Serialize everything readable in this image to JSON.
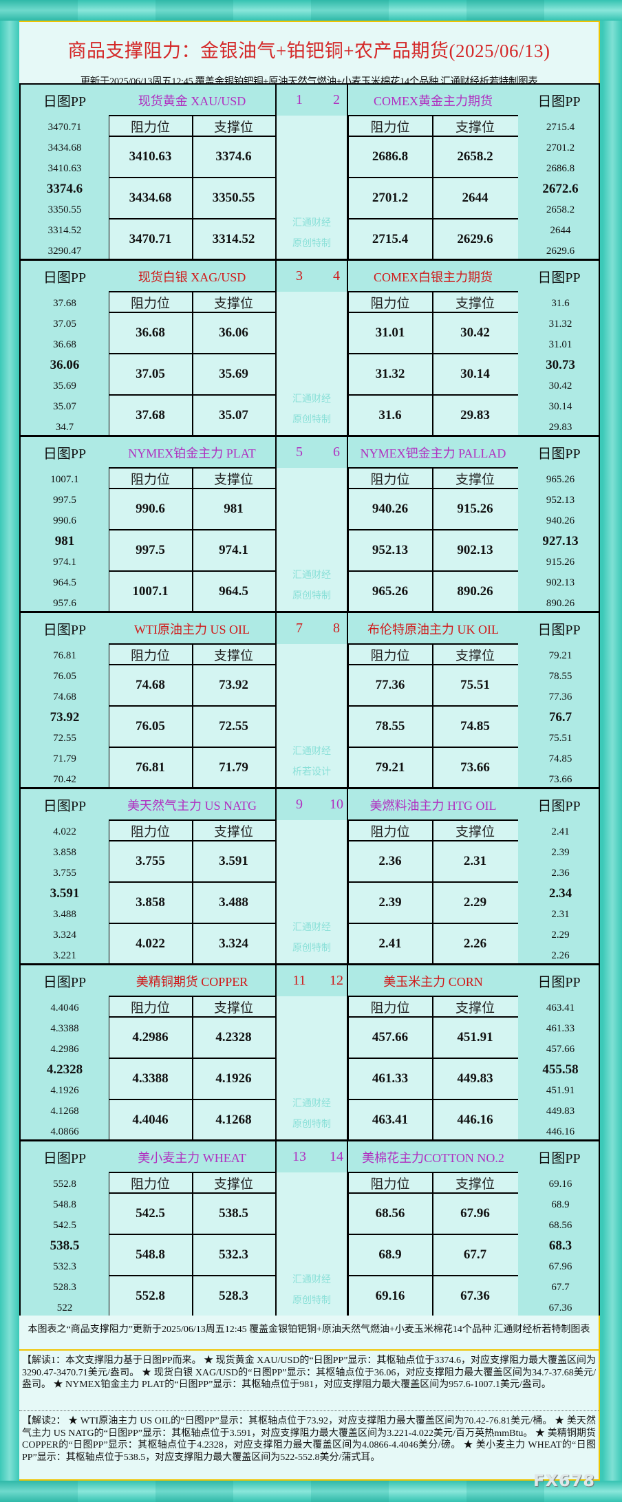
{
  "header": {
    "title": "商品支撑阻力：金银油气+铂钯铜+农产品期货(2025/06/13)",
    "subtitle": "更新于2025/06/13周五12:45  覆盖金银铂钯铜+原油天然气燃油+小麦玉米棉花14个品种  汇通财经析若特制图表"
  },
  "labels": {
    "pp": "日图PP",
    "resist": "阻力位",
    "support": "支撑位"
  },
  "colors": {
    "purple": "#b030c0",
    "red": "#d01818",
    "bg": "#aeeae4",
    "cell": "#d4f5f2",
    "accent": "#f0c400"
  },
  "sections": [
    {
      "nums": [
        "1",
        "2"
      ],
      "color": "#b030c0",
      "watermark": [
        "汇通财经",
        "原创特制"
      ],
      "left": {
        "name": "现货黄金 XAU/USD",
        "pp": [
          "3470.71",
          "3434.68",
          "3410.63",
          "3374.6",
          "3350.55",
          "3314.52",
          "3290.47"
        ],
        "resist": [
          "3410.63",
          "3434.68",
          "3470.71"
        ],
        "support": [
          "3374.6",
          "3350.55",
          "3314.52"
        ]
      },
      "right": {
        "name": "COMEX黄金主力期货",
        "pp": [
          "2715.4",
          "2701.2",
          "2686.8",
          "2672.6",
          "2658.2",
          "2644",
          "2629.6"
        ],
        "resist": [
          "2686.8",
          "2701.2",
          "2715.4"
        ],
        "support": [
          "2658.2",
          "2644",
          "2629.6"
        ]
      }
    },
    {
      "nums": [
        "3",
        "4"
      ],
      "color": "#d01818",
      "watermark": [
        "汇通财经",
        "原创特制"
      ],
      "left": {
        "name": "现货白银 XAG/USD",
        "pp": [
          "37.68",
          "37.05",
          "36.68",
          "36.06",
          "35.69",
          "35.07",
          "34.7"
        ],
        "resist": [
          "36.68",
          "37.05",
          "37.68"
        ],
        "support": [
          "36.06",
          "35.69",
          "35.07"
        ]
      },
      "right": {
        "name": "COMEX白银主力期货",
        "pp": [
          "31.6",
          "31.32",
          "31.01",
          "30.73",
          "30.42",
          "30.14",
          "29.83"
        ],
        "resist": [
          "31.01",
          "31.32",
          "31.6"
        ],
        "support": [
          "30.42",
          "30.14",
          "29.83"
        ]
      }
    },
    {
      "nums": [
        "5",
        "6"
      ],
      "color": "#b030c0",
      "watermark": [
        "汇通财经",
        "原创特制"
      ],
      "left": {
        "name": "NYMEX铂金主力 PLAT",
        "pp": [
          "1007.1",
          "997.5",
          "990.6",
          "981",
          "974.1",
          "964.5",
          "957.6"
        ],
        "resist": [
          "990.6",
          "997.5",
          "1007.1"
        ],
        "support": [
          "981",
          "974.1",
          "964.5"
        ]
      },
      "right": {
        "name": "NYMEX钯金主力 PALLAD",
        "pp": [
          "965.26",
          "952.13",
          "940.26",
          "927.13",
          "915.26",
          "902.13",
          "890.26"
        ],
        "resist": [
          "940.26",
          "952.13",
          "965.26"
        ],
        "support": [
          "915.26",
          "902.13",
          "890.26"
        ]
      }
    },
    {
      "nums": [
        "7",
        "8"
      ],
      "color": "#d01818",
      "watermark": [
        "汇通财经",
        "析若设计"
      ],
      "left": {
        "name": "WTI原油主力 US OIL",
        "pp": [
          "76.81",
          "76.05",
          "74.68",
          "73.92",
          "72.55",
          "71.79",
          "70.42"
        ],
        "resist": [
          "74.68",
          "76.05",
          "76.81"
        ],
        "support": [
          "73.92",
          "72.55",
          "71.79"
        ]
      },
      "right": {
        "name": "布伦特原油主力 UK OIL",
        "pp": [
          "79.21",
          "78.55",
          "77.36",
          "76.7",
          "75.51",
          "74.85",
          "73.66"
        ],
        "resist": [
          "77.36",
          "78.55",
          "79.21"
        ],
        "support": [
          "75.51",
          "74.85",
          "73.66"
        ]
      }
    },
    {
      "nums": [
        "9",
        "10"
      ],
      "color": "#b030c0",
      "watermark": [
        "汇通财经",
        "原创特制"
      ],
      "left": {
        "name": "美天然气主力 US NATG",
        "pp": [
          "4.022",
          "3.858",
          "3.755",
          "3.591",
          "3.488",
          "3.324",
          "3.221"
        ],
        "resist": [
          "3.755",
          "3.858",
          "4.022"
        ],
        "support": [
          "3.591",
          "3.488",
          "3.324"
        ]
      },
      "right": {
        "name": "美燃料油主力 HTG OIL",
        "pp": [
          "2.41",
          "2.39",
          "2.36",
          "2.34",
          "2.31",
          "2.29",
          "2.26"
        ],
        "resist": [
          "2.36",
          "2.39",
          "2.41"
        ],
        "support": [
          "2.31",
          "2.29",
          "2.26"
        ]
      }
    },
    {
      "nums": [
        "11",
        "12"
      ],
      "color": "#d01818",
      "watermark": [
        "汇通财经",
        "原创特制"
      ],
      "left": {
        "name": "美精铜期货 COPPER",
        "pp": [
          "4.4046",
          "4.3388",
          "4.2986",
          "4.2328",
          "4.1926",
          "4.1268",
          "4.0866"
        ],
        "resist": [
          "4.2986",
          "4.3388",
          "4.4046"
        ],
        "support": [
          "4.2328",
          "4.1926",
          "4.1268"
        ]
      },
      "right": {
        "name": "美玉米主力 CORN",
        "pp": [
          "463.41",
          "461.33",
          "457.66",
          "455.58",
          "451.91",
          "449.83",
          "446.16"
        ],
        "resist": [
          "457.66",
          "461.33",
          "463.41"
        ],
        "support": [
          "451.91",
          "449.83",
          "446.16"
        ]
      }
    },
    {
      "nums": [
        "13",
        "14"
      ],
      "color": "#b030c0",
      "watermark": [
        "汇通财经",
        "原创特制"
      ],
      "left": {
        "name": "美小麦主力 WHEAT",
        "pp": [
          "552.8",
          "548.8",
          "542.5",
          "538.5",
          "532.3",
          "528.3",
          "522"
        ],
        "resist": [
          "542.5",
          "548.8",
          "552.8"
        ],
        "support": [
          "538.5",
          "532.3",
          "528.3"
        ]
      },
      "right": {
        "name": "美棉花主力COTTON NO.2",
        "pp": [
          "69.16",
          "68.9",
          "68.56",
          "68.3",
          "67.96",
          "67.7",
          "67.36"
        ],
        "resist": [
          "68.56",
          "68.9",
          "69.16"
        ],
        "support": [
          "67.96",
          "67.7",
          "67.36"
        ]
      }
    }
  ],
  "notes": {
    "summary": "本图表之“商品支撑阻力”更新于2025/06/13周五12:45 覆盖金银铂钯铜+原油天然气燃油+小麦玉米棉花14个品种 汇通财经析若特制图表",
    "explain1": "【解读1：本文支撑阻力基于日图PP而来。 ★ 现货黄金 XAU/USD的“日图PP”显示：其枢轴点位于3374.6，对应支撑阻力最大覆盖区间为3290.47-3470.71美元/盎司。 ★ 现货白银 XAG/USD的“日图PP”显示：其枢轴点位于36.06，对应支撑阻力最大覆盖区间为34.7-37.68美元/盎司。 ★ NYMEX铂金主力 PLAT的“日图PP”显示：其枢轴点位于981，对应支撑阻力最大覆盖区间为957.6-1007.1美元/盎司。",
    "explain2": "【解读2： ★ WTI原油主力 US OIL的“日图PP”显示：其枢轴点位于73.92，对应支撑阻力最大覆盖区间为70.42-76.81美元/桶。 ★ 美天然气主力 US NATG的“日图PP”显示：其枢轴点位于3.591，对应支撑阻力最大覆盖区间为3.221-4.022美元/百万英热mmBtu。 ★ 美精铜期货 COPPER的“日图PP”显示：其枢轴点位于4.2328，对应支撑阻力最大覆盖区间为4.0866-4.4046美分/磅。 ★ 美小麦主力 WHEAT的“日图PP”显示：其枢轴点位于538.5，对应支撑阻力最大覆盖区间为522-552.8美分/蒲式耳。"
  },
  "logo": "FX678"
}
